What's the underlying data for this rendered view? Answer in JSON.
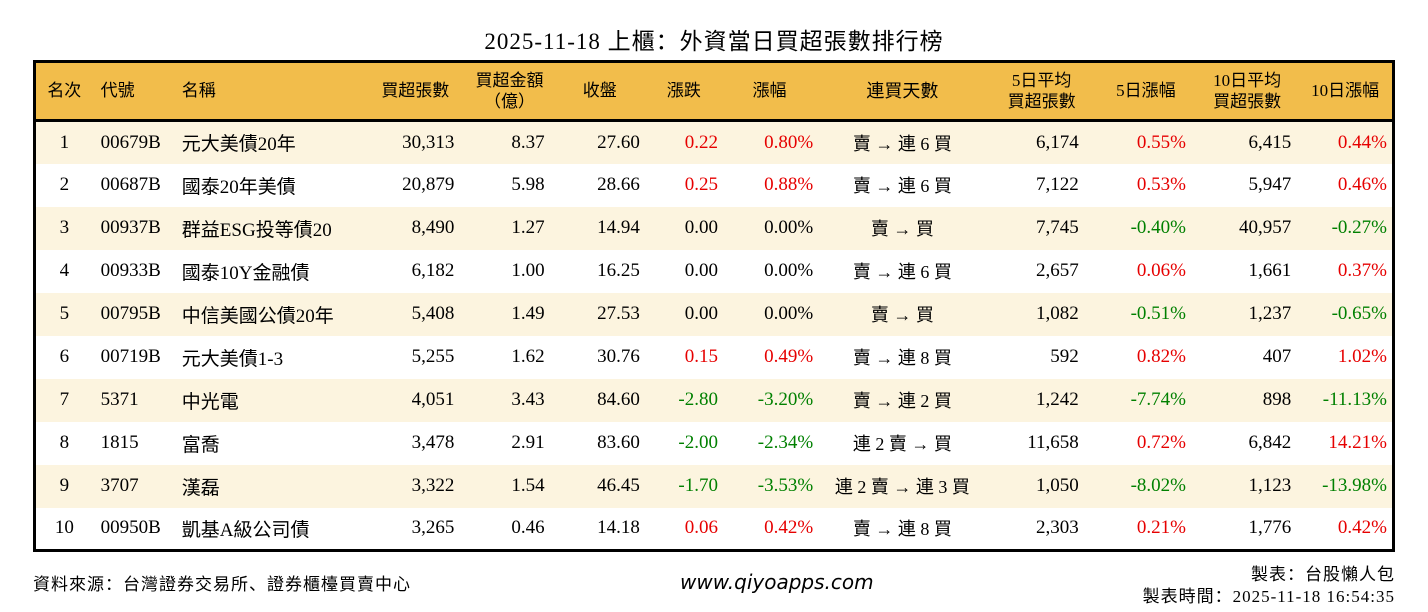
{
  "title": "2025-11-18 上櫃：外資當日買超張數排行榜",
  "colors": {
    "header_bg": "#F2BD4B",
    "row_alt_bg": "#FCF4DF",
    "up": "#E60000",
    "down": "#008000",
    "border": "#000000"
  },
  "table": {
    "columns": [
      {
        "key": "rank",
        "lines": [
          "名次"
        ]
      },
      {
        "key": "code",
        "lines": [
          "代號"
        ]
      },
      {
        "key": "name",
        "lines": [
          "名稱"
        ]
      },
      {
        "key": "shares",
        "lines": [
          "買超張數"
        ]
      },
      {
        "key": "amount",
        "lines": [
          "買超金額",
          "（億）"
        ]
      },
      {
        "key": "close",
        "lines": [
          "收盤"
        ]
      },
      {
        "key": "change",
        "lines": [
          "漲跌"
        ]
      },
      {
        "key": "change_pct",
        "lines": [
          "漲幅"
        ]
      },
      {
        "key": "streak",
        "lines": [
          "連買天數"
        ]
      },
      {
        "key": "avg5",
        "lines": [
          "5日平均",
          "買超張數"
        ]
      },
      {
        "key": "pct5",
        "lines": [
          "5日漲幅"
        ]
      },
      {
        "key": "avg10",
        "lines": [
          "10日平均",
          "買超張數"
        ]
      },
      {
        "key": "pct10",
        "lines": [
          "10日漲幅"
        ]
      }
    ],
    "rows": [
      {
        "rank": "1",
        "code": "00679B",
        "name": "元大美債20年",
        "shares": "30,313",
        "amount": "8.37",
        "close": "27.60",
        "change": "0.22",
        "change_pct": "0.80%",
        "streak": "賣 → 連 6 買",
        "avg5": "6,174",
        "pct5": "0.55%",
        "avg10": "6,415",
        "pct10": "0.44%",
        "dirs": {
          "change": "up",
          "pct5": "up",
          "pct10": "up"
        }
      },
      {
        "rank": "2",
        "code": "00687B",
        "name": "國泰20年美債",
        "shares": "20,879",
        "amount": "5.98",
        "close": "28.66",
        "change": "0.25",
        "change_pct": "0.88%",
        "streak": "賣 → 連 6 買",
        "avg5": "7,122",
        "pct5": "0.53%",
        "avg10": "5,947",
        "pct10": "0.46%",
        "dirs": {
          "change": "up",
          "pct5": "up",
          "pct10": "up"
        }
      },
      {
        "rank": "3",
        "code": "00937B",
        "name": "群益ESG投等債20",
        "shares": "8,490",
        "amount": "1.27",
        "close": "14.94",
        "change": "0.00",
        "change_pct": "0.00%",
        "streak": "賣 → 買",
        "avg5": "7,745",
        "pct5": "-0.40%",
        "avg10": "40,957",
        "pct10": "-0.27%",
        "dirs": {
          "change": "flat",
          "pct5": "down",
          "pct10": "down"
        }
      },
      {
        "rank": "4",
        "code": "00933B",
        "name": "國泰10Y金融債",
        "shares": "6,182",
        "amount": "1.00",
        "close": "16.25",
        "change": "0.00",
        "change_pct": "0.00%",
        "streak": "賣 → 連 6 買",
        "avg5": "2,657",
        "pct5": "0.06%",
        "avg10": "1,661",
        "pct10": "0.37%",
        "dirs": {
          "change": "flat",
          "pct5": "up",
          "pct10": "up"
        }
      },
      {
        "rank": "5",
        "code": "00795B",
        "name": "中信美國公債20年",
        "shares": "5,408",
        "amount": "1.49",
        "close": "27.53",
        "change": "0.00",
        "change_pct": "0.00%",
        "streak": "賣 → 買",
        "avg5": "1,082",
        "pct5": "-0.51%",
        "avg10": "1,237",
        "pct10": "-0.65%",
        "dirs": {
          "change": "flat",
          "pct5": "down",
          "pct10": "down"
        }
      },
      {
        "rank": "6",
        "code": "00719B",
        "name": "元大美債1-3",
        "shares": "5,255",
        "amount": "1.62",
        "close": "30.76",
        "change": "0.15",
        "change_pct": "0.49%",
        "streak": "賣 → 連 8 買",
        "avg5": "592",
        "pct5": "0.82%",
        "avg10": "407",
        "pct10": "1.02%",
        "dirs": {
          "change": "up",
          "pct5": "up",
          "pct10": "up"
        }
      },
      {
        "rank": "7",
        "code": "5371",
        "name": "中光電",
        "shares": "4,051",
        "amount": "3.43",
        "close": "84.60",
        "change": "-2.80",
        "change_pct": "-3.20%",
        "streak": "賣 → 連 2 買",
        "avg5": "1,242",
        "pct5": "-7.74%",
        "avg10": "898",
        "pct10": "-11.13%",
        "dirs": {
          "change": "down",
          "pct5": "down",
          "pct10": "down"
        }
      },
      {
        "rank": "8",
        "code": "1815",
        "name": "富喬",
        "shares": "3,478",
        "amount": "2.91",
        "close": "83.60",
        "change": "-2.00",
        "change_pct": "-2.34%",
        "streak": "連 2 賣 → 買",
        "avg5": "11,658",
        "pct5": "0.72%",
        "avg10": "6,842",
        "pct10": "14.21%",
        "dirs": {
          "change": "down",
          "pct5": "up",
          "pct10": "up"
        }
      },
      {
        "rank": "9",
        "code": "3707",
        "name": "漢磊",
        "shares": "3,322",
        "amount": "1.54",
        "close": "46.45",
        "change": "-1.70",
        "change_pct": "-3.53%",
        "streak": "連 2 賣 → 連 3 買",
        "avg5": "1,050",
        "pct5": "-8.02%",
        "avg10": "1,123",
        "pct10": "-13.98%",
        "dirs": {
          "change": "down",
          "pct5": "down",
          "pct10": "down"
        }
      },
      {
        "rank": "10",
        "code": "00950B",
        "name": "凱基A級公司債",
        "shares": "3,265",
        "amount": "0.46",
        "close": "14.18",
        "change": "0.06",
        "change_pct": "0.42%",
        "streak": "賣 → 連 8 買",
        "avg5": "2,303",
        "pct5": "0.21%",
        "avg10": "1,776",
        "pct10": "0.42%",
        "dirs": {
          "change": "up",
          "pct5": "up",
          "pct10": "up"
        }
      }
    ]
  },
  "footer": {
    "source": "資料來源：台灣證券交易所、證券櫃檯買賣中心",
    "url": "www.qiyoapps.com",
    "credit": "製表：台股懶人包",
    "generated": "製表時間：2025-11-18 16:54:35"
  }
}
